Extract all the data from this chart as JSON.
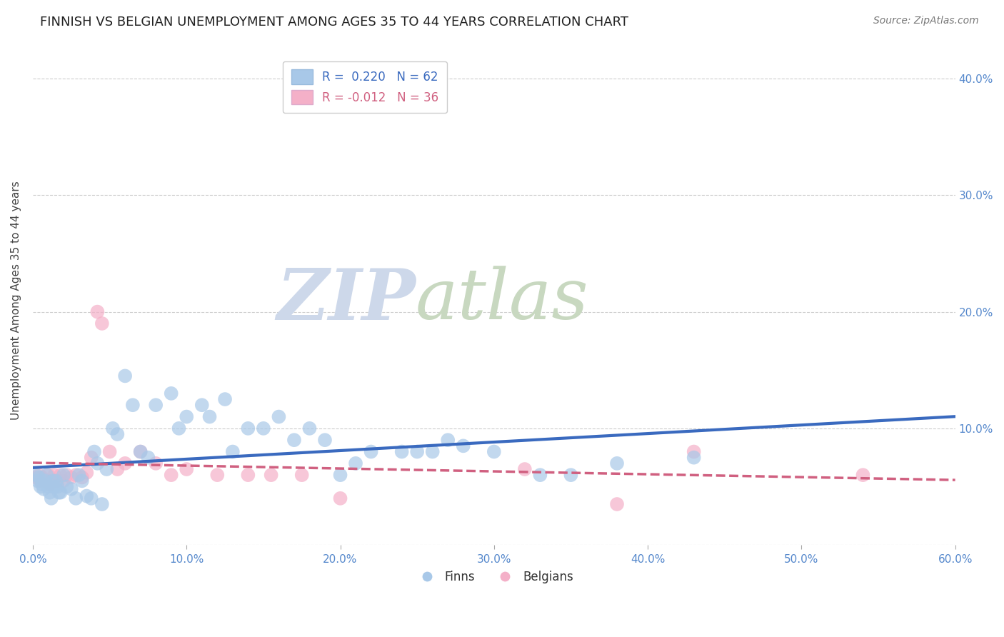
{
  "title": "FINNISH VS BELGIAN UNEMPLOYMENT AMONG AGES 35 TO 44 YEARS CORRELATION CHART",
  "source": "Source: ZipAtlas.com",
  "ylabel": "Unemployment Among Ages 35 to 44 years",
  "xlim": [
    0.0,
    0.6
  ],
  "ylim": [
    0.0,
    0.42
  ],
  "finn_R": 0.22,
  "finn_N": 62,
  "belg_R": -0.012,
  "belg_N": 36,
  "finn_color": "#a8c8e8",
  "belg_color": "#f4b0c8",
  "finn_line_color": "#3a6abf",
  "belg_line_color": "#d06080",
  "legend_finn_label": "Finns",
  "legend_belg_label": "Belgians",
  "finns_x": [
    0.002,
    0.003,
    0.004,
    0.005,
    0.006,
    0.007,
    0.008,
    0.009,
    0.01,
    0.011,
    0.012,
    0.013,
    0.014,
    0.015,
    0.016,
    0.017,
    0.018,
    0.02,
    0.022,
    0.025,
    0.028,
    0.03,
    0.032,
    0.035,
    0.038,
    0.04,
    0.042,
    0.045,
    0.048,
    0.052,
    0.055,
    0.06,
    0.065,
    0.07,
    0.075,
    0.08,
    0.09,
    0.095,
    0.1,
    0.11,
    0.115,
    0.125,
    0.13,
    0.14,
    0.15,
    0.16,
    0.17,
    0.18,
    0.19,
    0.2,
    0.21,
    0.22,
    0.24,
    0.25,
    0.26,
    0.27,
    0.28,
    0.3,
    0.33,
    0.35,
    0.38,
    0.43
  ],
  "finns_y": [
    0.06,
    0.055,
    0.058,
    0.05,
    0.052,
    0.048,
    0.055,
    0.06,
    0.05,
    0.045,
    0.04,
    0.055,
    0.05,
    0.055,
    0.05,
    0.045,
    0.045,
    0.06,
    0.05,
    0.048,
    0.04,
    0.06,
    0.055,
    0.042,
    0.04,
    0.08,
    0.07,
    0.035,
    0.065,
    0.1,
    0.095,
    0.145,
    0.12,
    0.08,
    0.075,
    0.12,
    0.13,
    0.1,
    0.11,
    0.12,
    0.11,
    0.125,
    0.08,
    0.1,
    0.1,
    0.11,
    0.09,
    0.1,
    0.09,
    0.06,
    0.07,
    0.08,
    0.08,
    0.08,
    0.08,
    0.09,
    0.085,
    0.08,
    0.06,
    0.06,
    0.07,
    0.075
  ],
  "belgs_x": [
    0.002,
    0.004,
    0.005,
    0.006,
    0.008,
    0.01,
    0.011,
    0.012,
    0.014,
    0.016,
    0.018,
    0.02,
    0.022,
    0.025,
    0.028,
    0.032,
    0.035,
    0.038,
    0.042,
    0.045,
    0.05,
    0.055,
    0.06,
    0.07,
    0.08,
    0.09,
    0.1,
    0.12,
    0.14,
    0.155,
    0.175,
    0.2,
    0.32,
    0.38,
    0.43,
    0.54
  ],
  "belgs_y": [
    0.058,
    0.06,
    0.055,
    0.058,
    0.055,
    0.06,
    0.052,
    0.055,
    0.06,
    0.055,
    0.06,
    0.055,
    0.06,
    0.058,
    0.06,
    0.058,
    0.062,
    0.075,
    0.2,
    0.19,
    0.08,
    0.065,
    0.07,
    0.08,
    0.07,
    0.06,
    0.065,
    0.06,
    0.06,
    0.06,
    0.06,
    0.04,
    0.065,
    0.035,
    0.08,
    0.06
  ],
  "xlabel_ticks": [
    0.0,
    0.1,
    0.2,
    0.3,
    0.4,
    0.5,
    0.6
  ],
  "xlabel_labels": [
    "0.0%",
    "10.0%",
    "20.0%",
    "30.0%",
    "40.0%",
    "50.0%",
    "60.0%"
  ],
  "ytick_positions": [
    0.0,
    0.1,
    0.2,
    0.3,
    0.4
  ],
  "ytick_labels": [
    "",
    "10.0%",
    "20.0%",
    "30.0%",
    "40.0%"
  ],
  "title_fontsize": 13,
  "axis_label_fontsize": 11,
  "tick_fontsize": 11,
  "source_fontsize": 10,
  "legend_fontsize": 12,
  "background_color": "#ffffff",
  "grid_color": "#cccccc",
  "tick_color": "#5588cc"
}
